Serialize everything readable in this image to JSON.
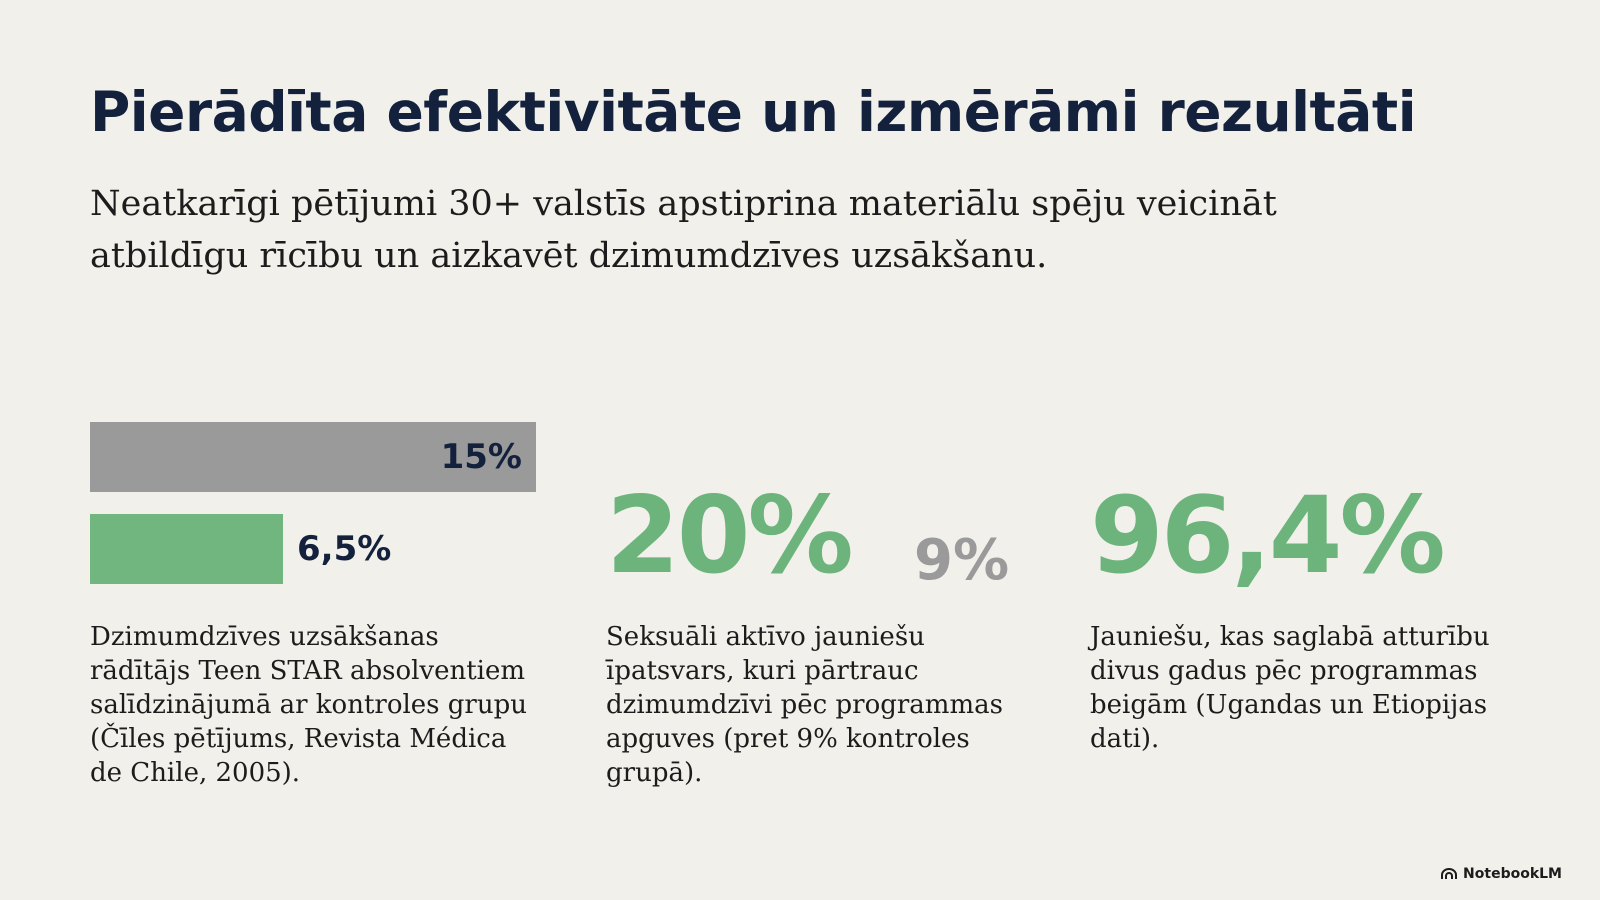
{
  "title": "Pierādīta efektivitāte un izmērāmi rezultāti",
  "subtitle": "Neatkarīgi pētījumi 30+ valstīs apstiprina materiālu spēju veicināt atbildīgu rīcību un aizkavēt dzimumdzīves uzsākšanu.",
  "chart_data": {
    "type": "bar",
    "orientation": "horizontal",
    "title": "",
    "xlabel": "",
    "ylabel": "",
    "values": [
      15,
      6.5
    ],
    "value_labels": [
      "15%",
      "6,5%"
    ],
    "colors": [
      "#9a9a9b",
      "#71b67f"
    ],
    "xlim": [
      0,
      15
    ]
  },
  "stats": {
    "first": {
      "description": "Dzimumdzīves uzsākšanas rādītājs Teen STAR absolventiem salīdzinājumā ar kontroles grupu (Čīles pētījums, Revista Médica de Chile, 2005)."
    },
    "second": {
      "value": "20%",
      "comparison": "9%",
      "description": "Seksuāli aktīvo jauniešu īpatsvars, kuri pārtrauc dzimumdzīvi pēc programmas apguves (pret 9% kontroles grupā)."
    },
    "third": {
      "value": "96,4%",
      "description": "Jauniešu, kas saglabā atturību divus gadus pēc programmas beigām (Ugandas un Etiopijas dati)."
    }
  },
  "colors": {
    "accent_green": "#6cb47c",
    "muted_gray": "#9a9a9b",
    "navy": "#14213d",
    "background": "#f1f0eb"
  },
  "branding": {
    "icon": "notebooklm-logo-icon",
    "label": "NotebookLM"
  }
}
